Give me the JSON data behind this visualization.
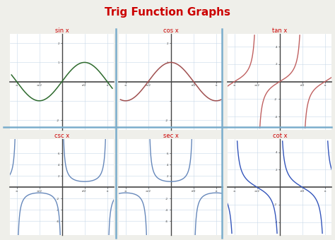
{
  "title": "Trig Function Graphs",
  "title_color": "#cc0000",
  "title_fontsize": 11,
  "background_color": "#efefea",
  "panel_background": "#ffffff",
  "grid_color": "#c8d8e8",
  "axis_color": "#444444",
  "functions": [
    "sin x",
    "cos x",
    "tan x",
    "csc x",
    "sec x",
    "cot x"
  ],
  "func_label_color": "#cc0000",
  "sin_color": "#2d6a2d",
  "cos_color": "#a05050",
  "tan_color": "#c06060",
  "csc_color": "#6688bb",
  "sec_color": "#6688bb",
  "cot_color": "#3355bb",
  "sep_color": "#7aadcc",
  "xlim": [
    -3.6,
    3.6
  ],
  "ylim_standard": [
    -2.5,
    2.5
  ],
  "ylim_tan": [
    -5.5,
    5.5
  ],
  "ylim_rec": [
    -8.5,
    8.5
  ],
  "ylim_cot": [
    -5.5,
    5.5
  ],
  "pi": 3.14159265358979
}
